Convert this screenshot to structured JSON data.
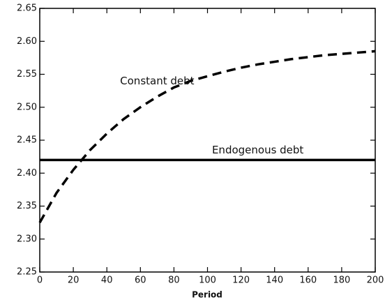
{
  "chart_data": {
    "type": "line",
    "xlabel": "Period",
    "x": [
      0,
      10,
      20,
      30,
      40,
      50,
      60,
      70,
      80,
      90,
      100,
      110,
      120,
      130,
      140,
      150,
      160,
      170,
      180,
      190,
      200
    ],
    "series": [
      {
        "name": "Constant debt",
        "color": "#000000",
        "dash": true,
        "values": [
          2.325,
          2.37,
          2.405,
          2.435,
          2.46,
          2.482,
          2.5,
          2.516,
          2.53,
          2.54,
          2.547,
          2.554,
          2.56,
          2.565,
          2.569,
          2.573,
          2.576,
          2.579,
          2.581,
          2.583,
          2.585
        ]
      },
      {
        "name": "Endogenous debt",
        "color": "#000000",
        "dash": false,
        "values": [
          2.42,
          2.42,
          2.42,
          2.42,
          2.42,
          2.42,
          2.42,
          2.42,
          2.42,
          2.42,
          2.42,
          2.42,
          2.42,
          2.42,
          2.42,
          2.42,
          2.42,
          2.42,
          2.42,
          2.42,
          2.42
        ]
      }
    ],
    "xlim": [
      0,
      200
    ],
    "xticks": [
      0,
      20,
      40,
      60,
      80,
      100,
      120,
      140,
      160,
      180,
      200
    ],
    "ylim": [
      2.25,
      2.65
    ],
    "yticks": [
      2.25,
      {
        "value": 2.3,
        "label": "2.30"
      },
      2.35,
      {
        "value": 2.4,
        "label": "2.40"
      },
      2.45,
      {
        "value": 2.5,
        "label": "2.50"
      },
      2.55,
      {
        "value": 2.6,
        "label": "2.60"
      },
      2.65
    ],
    "grid": false
  }
}
